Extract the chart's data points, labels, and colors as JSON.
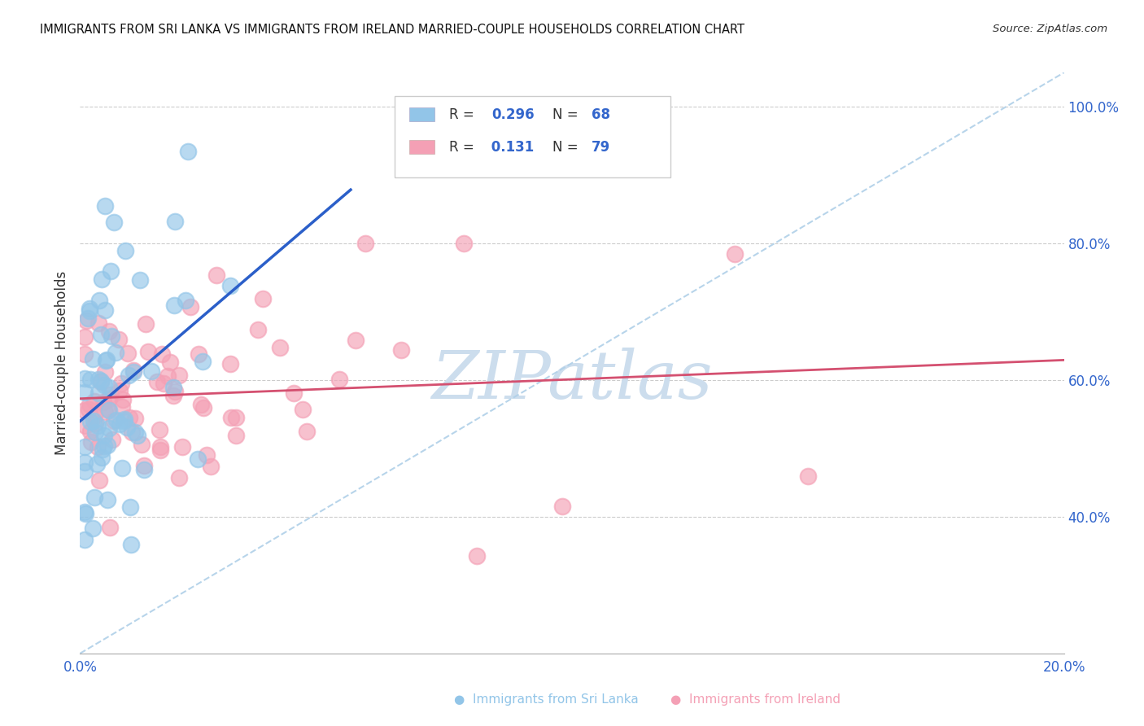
{
  "title": "IMMIGRANTS FROM SRI LANKA VS IMMIGRANTS FROM IRELAND MARRIED-COUPLE HOUSEHOLDS CORRELATION CHART",
  "source": "Source: ZipAtlas.com",
  "ylabel": "Married-couple Households",
  "xlim": [
    0.0,
    0.2
  ],
  "ylim": [
    0.2,
    1.05
  ],
  "sri_lanka_color": "#92C5E8",
  "ireland_color": "#F4A0B5",
  "sri_lanka_line_color": "#2B5FC9",
  "ireland_line_color": "#D45070",
  "ref_line_color": "#B0D0E8",
  "watermark": "ZIPatlas",
  "watermark_color": "#CCDDED",
  "background_color": "#FFFFFF"
}
